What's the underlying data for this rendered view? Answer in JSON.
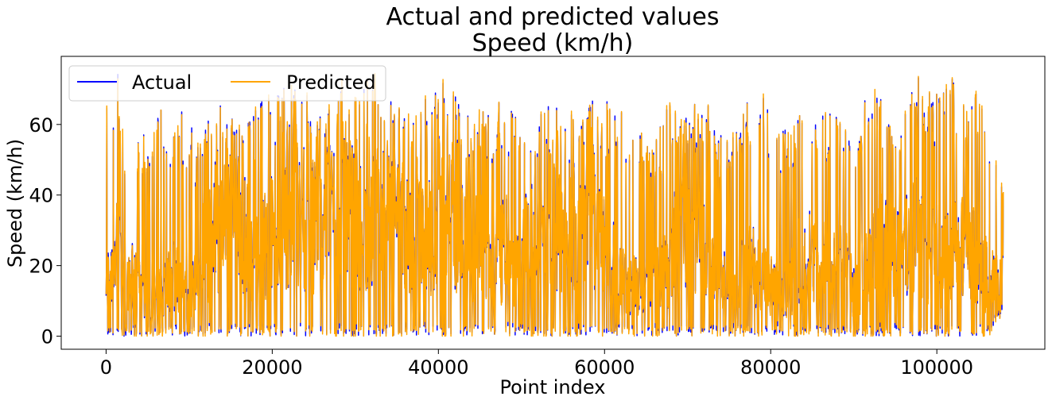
{
  "chart_data": {
    "type": "line",
    "title": "Actual and predicted values",
    "subtitle": "Speed (km/h)",
    "xlabel": "Point index",
    "ylabel": "Speed (km/h)",
    "xlim": [
      -5400,
      113000
    ],
    "ylim": [
      -3.7,
      79.3
    ],
    "x_ticks": [
      0,
      20000,
      40000,
      60000,
      80000,
      100000
    ],
    "x_tick_labels": [
      "0",
      "20000",
      "40000",
      "60000",
      "80000",
      "100000"
    ],
    "y_ticks": [
      0,
      20,
      40,
      60
    ],
    "y_tick_labels": [
      "0",
      "20",
      "40",
      "60"
    ],
    "grid": false,
    "legend_position": "top-left",
    "x_range": [
      0,
      108000
    ],
    "series": [
      {
        "name": "Actual",
        "color": "#0000ff"
      },
      {
        "name": "Predicted",
        "color": "#ffa500"
      }
    ],
    "envelope_x": [
      0,
      1500,
      2500,
      4000,
      5000,
      6500,
      8000,
      9000,
      10000,
      11000,
      12000,
      13500,
      15000,
      16500,
      18000,
      19500,
      21000,
      22500,
      24000,
      25500,
      27000,
      28500,
      30000,
      31500,
      33000,
      34500,
      36000,
      37500,
      39000,
      40500,
      42000,
      43500,
      45000,
      46500,
      48000,
      49500,
      51000,
      52500,
      54000,
      55500,
      57000,
      58500,
      60000,
      61500,
      63000,
      64500,
      66000,
      67500,
      69000,
      70500,
      72000,
      73500,
      75000,
      76500,
      78000,
      79500,
      81000,
      82500,
      84000,
      85500,
      87000,
      88500,
      90000,
      91500,
      93000,
      94500,
      96000,
      97500,
      99000,
      100500,
      102000,
      103500,
      105000,
      106500,
      107800
    ],
    "envelope_max": [
      66,
      76,
      53,
      58,
      62,
      65,
      61,
      65,
      63,
      56,
      62,
      66,
      69,
      63,
      65,
      74,
      72,
      73,
      68,
      72,
      66,
      73,
      69,
      73,
      74,
      67,
      68,
      62,
      74,
      74,
      69,
      63,
      64,
      66,
      67,
      63,
      68,
      65,
      66,
      64,
      69,
      67,
      68,
      66,
      65,
      58,
      54,
      66,
      68,
      67,
      69,
      61,
      55,
      62,
      73,
      66,
      58,
      60,
      64,
      61,
      65,
      62,
      59,
      73,
      70,
      71,
      68,
      75,
      73,
      70,
      74,
      67,
      72,
      57,
      48
    ],
    "envelope_min": [
      0,
      0,
      0,
      0,
      0,
      0,
      0,
      0,
      0,
      0,
      0,
      0,
      0,
      0,
      0,
      0,
      0,
      0,
      0,
      0,
      0,
      0,
      0,
      0,
      0,
      0,
      0,
      0,
      0,
      0,
      0,
      0,
      0,
      0,
      0,
      0,
      0,
      0,
      0,
      0,
      0,
      0,
      0,
      0,
      0,
      0,
      0,
      0,
      0,
      0,
      0,
      0,
      0,
      0,
      0,
      0,
      0,
      0,
      0,
      0,
      0,
      0,
      0,
      0,
      0,
      0,
      0,
      0,
      0,
      0,
      0,
      0,
      0,
      0,
      6
    ],
    "envelope_typical": [
      15,
      25,
      20,
      15,
      10,
      12,
      18,
      15,
      10,
      20,
      25,
      30,
      35,
      30,
      25,
      28,
      30,
      35,
      30,
      32,
      35,
      38,
      32,
      30,
      35,
      35,
      30,
      28,
      30,
      38,
      30,
      25,
      28,
      20,
      25,
      20,
      28,
      30,
      30,
      30,
      35,
      30,
      25,
      20,
      15,
      15,
      15,
      18,
      35,
      30,
      25,
      15,
      15,
      20,
      20,
      15,
      12,
      15,
      25,
      20,
      20,
      20,
      15,
      20,
      25,
      25,
      25,
      30,
      25,
      20,
      25,
      25,
      22,
      15,
      15
    ]
  }
}
